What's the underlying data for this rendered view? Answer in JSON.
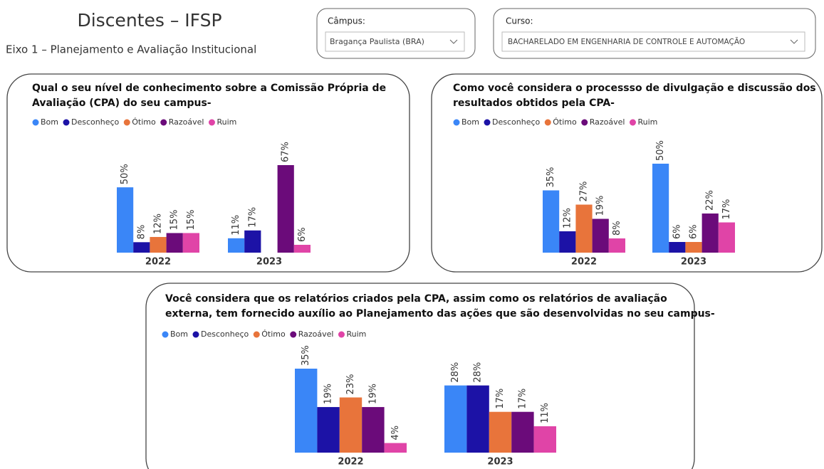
{
  "header": {
    "title": "Discentes – IFSP",
    "subtitle": "Eixo 1 – Planejamento e Avaliação Institucional"
  },
  "filters": [
    {
      "label": "Câmpus:",
      "value": "Bragança Paulista (BRA)"
    },
    {
      "label": "Curso:",
      "value": "BACHARELADO EM ENGENHARIA DE CONTROLE E AUTOMAÇÃO"
    }
  ],
  "chart_data": [
    {
      "type": "bar",
      "title": [
        "Qual o seu nível de conhecimento sobre a Comissão Própria de",
        "Avaliação (CPA) do seu campus-"
      ],
      "categories": [
        "2022",
        "2023"
      ],
      "series": [
        {
          "name": "Bom",
          "color": "#3a86f7",
          "values": [
            50,
            11
          ],
          "value_labels": [
            "50%",
            "11%"
          ]
        },
        {
          "name": "Desconheço",
          "color": "#1c12a6",
          "values": [
            8,
            17
          ],
          "value_labels": [
            "8%",
            "17%"
          ]
        },
        {
          "name": "Ótimo",
          "color": "#e8743b",
          "values": [
            12,
            null
          ],
          "value_labels": [
            "12%",
            null
          ]
        },
        {
          "name": "Razoável",
          "color": "#6b0b7a",
          "values": [
            15,
            67
          ],
          "value_labels": [
            "15%",
            "67%"
          ]
        },
        {
          "name": "Ruim",
          "color": "#e044a7",
          "values": [
            15,
            6
          ],
          "value_labels": [
            "15%",
            "6%"
          ]
        }
      ]
    },
    {
      "type": "bar",
      "title": [
        "Como você considera o processso de divulgação e discussão dos",
        "resultados obtidos pela CPA-"
      ],
      "categories": [
        "2022",
        "2023"
      ],
      "series": [
        {
          "name": "Bom",
          "color": "#3a86f7",
          "values": [
            35,
            50
          ],
          "value_labels": [
            "35%",
            "50%"
          ]
        },
        {
          "name": "Desconheço",
          "color": "#1c12a6",
          "values": [
            12,
            6
          ],
          "value_labels": [
            "12%",
            "6%"
          ]
        },
        {
          "name": "Ótimo",
          "color": "#e8743b",
          "values": [
            27,
            6
          ],
          "value_labels": [
            "27%",
            "6%"
          ]
        },
        {
          "name": "Razoável",
          "color": "#6b0b7a",
          "values": [
            19,
            22
          ],
          "value_labels": [
            "19%",
            "22%"
          ]
        },
        {
          "name": "Ruim",
          "color": "#e044a7",
          "values": [
            8,
            17
          ],
          "value_labels": [
            "8%",
            "17%"
          ]
        }
      ]
    },
    {
      "type": "bar",
      "title": [
        "Você considera que os relatórios criados pela CPA, assim como os relatórios de avaliação",
        "externa, tem fornecido auxílio ao Planejamento das ações que são desenvolvidas no seu campus-"
      ],
      "categories": [
        "2022",
        "2023"
      ],
      "series": [
        {
          "name": "Bom",
          "color": "#3a86f7",
          "values": [
            35,
            28
          ],
          "value_labels": [
            "35%",
            "28%"
          ]
        },
        {
          "name": "Desconheço",
          "color": "#1c12a6",
          "values": [
            19,
            28
          ],
          "value_labels": [
            "19%",
            "28%"
          ]
        },
        {
          "name": "Ótimo",
          "color": "#e8743b",
          "values": [
            23,
            17
          ],
          "value_labels": [
            "23%",
            "17%"
          ]
        },
        {
          "name": "Razoável",
          "color": "#6b0b7a",
          "values": [
            19,
            17
          ],
          "value_labels": [
            "19%",
            "17%"
          ]
        },
        {
          "name": "Ruim",
          "color": "#e044a7",
          "values": [
            4,
            11
          ],
          "value_labels": [
            "4%",
            "11%"
          ]
        }
      ]
    }
  ]
}
